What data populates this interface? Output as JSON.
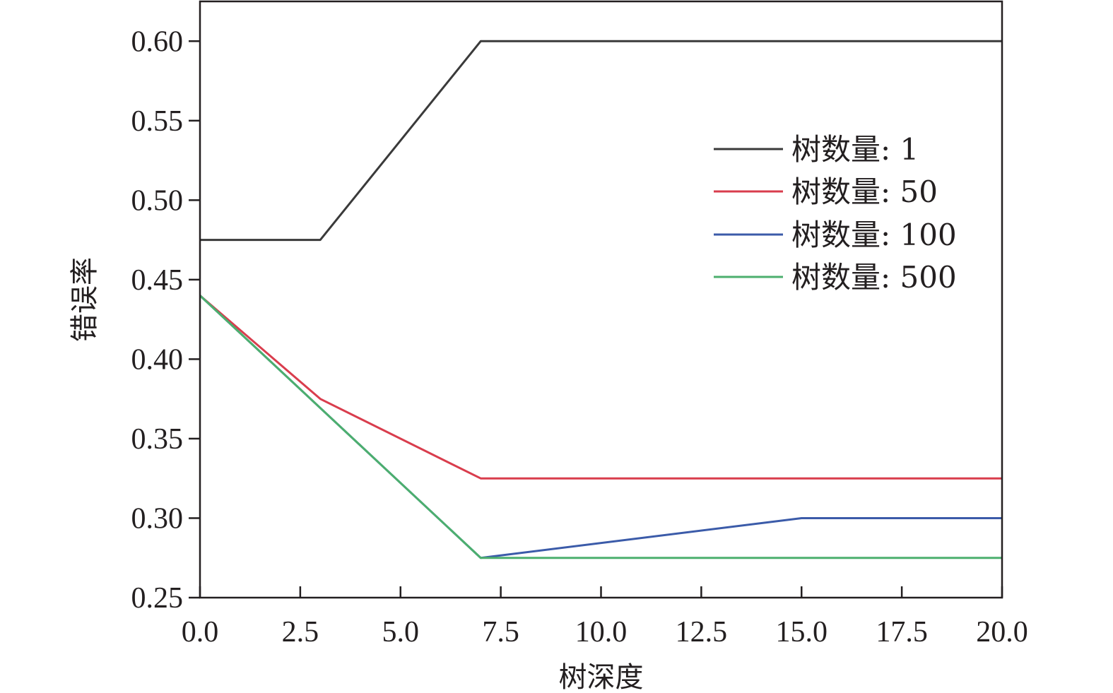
{
  "chart_data": {
    "type": "line",
    "xlabel": "树深度",
    "ylabel": "错误率",
    "xlim": [
      0,
      20
    ],
    "ylim": [
      0.25,
      0.625
    ],
    "x_ticks": [
      "0.0",
      "2.5",
      "5.0",
      "7.5",
      "10.0",
      "12.5",
      "15.0",
      "17.5",
      "20.0"
    ],
    "y_ticks": [
      "0.25",
      "0.30",
      "0.35",
      "0.40",
      "0.45",
      "0.50",
      "0.55",
      "0.60"
    ],
    "grid": false,
    "legend_position": "top-right",
    "series": [
      {
        "name": "树数量: 1",
        "color": "#3a3a3a",
        "points": [
          [
            0,
            0.475
          ],
          [
            3,
            0.475
          ],
          [
            7,
            0.6
          ],
          [
            20,
            0.6
          ]
        ]
      },
      {
        "name": "树数量: 50",
        "color": "#d93d4d",
        "points": [
          [
            0,
            0.44
          ],
          [
            3,
            0.375
          ],
          [
            7,
            0.325
          ],
          [
            20,
            0.325
          ]
        ]
      },
      {
        "name": "树数量: 100",
        "color": "#3b5ba9",
        "points": [
          [
            0,
            0.44
          ],
          [
            7,
            0.275
          ],
          [
            15,
            0.3
          ],
          [
            20,
            0.3
          ]
        ]
      },
      {
        "name": "树数量: 500",
        "color": "#4caf6e",
        "points": [
          [
            0,
            0.44
          ],
          [
            7,
            0.275
          ],
          [
            20,
            0.275
          ]
        ]
      }
    ]
  }
}
